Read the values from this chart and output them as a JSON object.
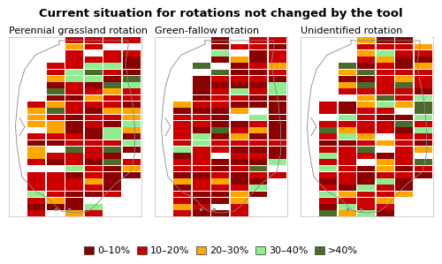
{
  "title": "Current situation for rotations not changed by the tool",
  "panel_labels": [
    "Perennial grassland rotation",
    "Green-fallow rotation",
    "Unidentified rotation"
  ],
  "legend_items": [
    {
      "label": "0–10%",
      "color": "#8B0000"
    },
    {
      "label": "10–20%",
      "color": "#CC0000"
    },
    {
      "label": "20–30%",
      "color": "#FFA500"
    },
    {
      "label": "30–40%",
      "color": "#90EE90"
    },
    {
      "label": ">40%",
      "color": "#4B6B2A"
    }
  ],
  "bg_color": "#FFFFFF",
  "title_fontsize": 9.5,
  "label_fontsize": 8,
  "legend_fontsize": 8,
  "panel_bg": "#FFFFFF",
  "panel_seeds": [
    42,
    123,
    77
  ],
  "panel_probs": [
    [
      0.2,
      0.42,
      0.18,
      0.08,
      0.05,
      0.07
    ],
    [
      0.42,
      0.28,
      0.12,
      0.06,
      0.04,
      0.08
    ],
    [
      0.18,
      0.38,
      0.18,
      0.12,
      0.07,
      0.07
    ]
  ],
  "grid_rows": 28,
  "grid_cols": 7,
  "white_prob": 0.08
}
